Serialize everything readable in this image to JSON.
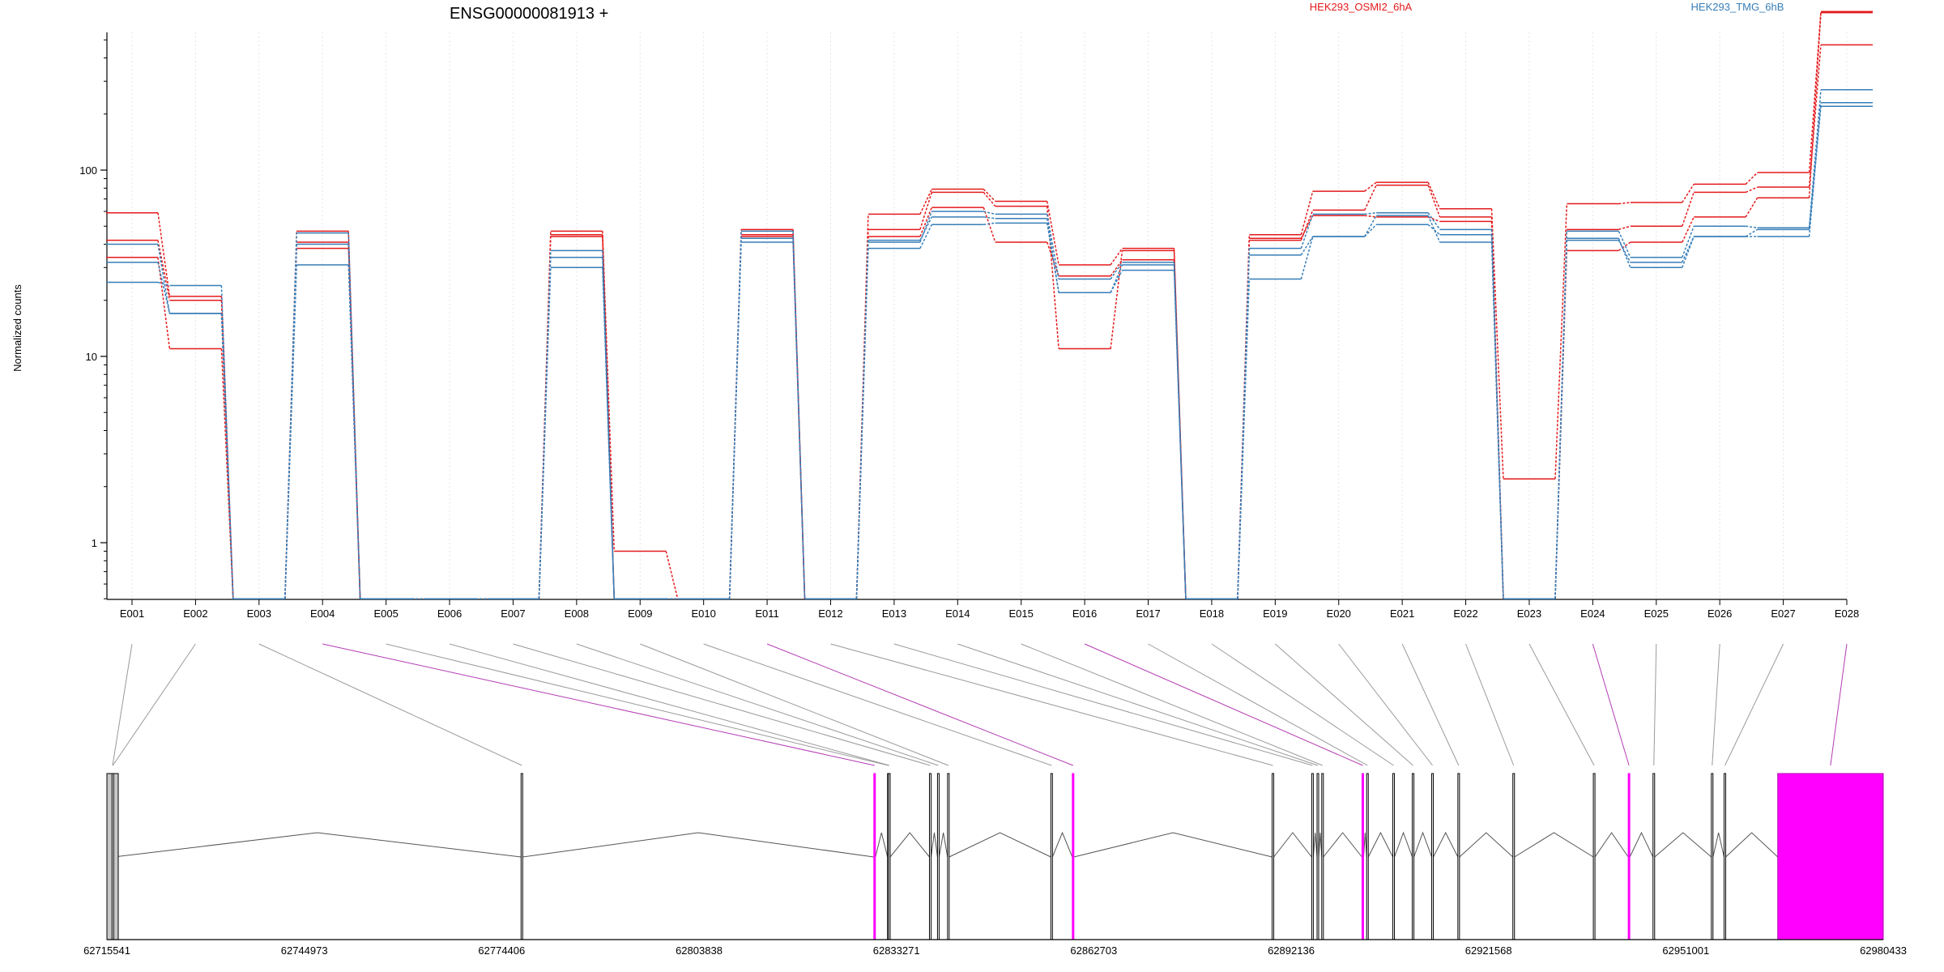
{
  "chart_data": {
    "type": "line",
    "title": "ENSG00000081913 +",
    "ylabel": "Normalized counts",
    "yscale": "log",
    "yticks": [
      "1",
      "10",
      "100"
    ],
    "categories": [
      "E001",
      "E002",
      "E003",
      "E004",
      "E005",
      "E006",
      "E007",
      "E008",
      "E009",
      "E010",
      "E011",
      "E012",
      "E013",
      "E014",
      "E015",
      "E016",
      "E017",
      "E018",
      "E019",
      "E020",
      "E021",
      "E022",
      "E023",
      "E024",
      "E025",
      "E026",
      "E027",
      "E028"
    ],
    "legend": [
      {
        "name": "HEK293_OSMI2_6hA",
        "color": "#e41a1c"
      },
      {
        "name": "HEK293_TMG_6hB",
        "color": "#377eb8"
      }
    ],
    "series": [
      {
        "group": "HEK293_OSMI2_6hA",
        "color": "#e41a1c",
        "values": [
          59,
          21,
          0.5,
          47,
          0.5,
          0.5,
          0.5,
          47,
          0.9,
          0.5,
          48,
          0.5,
          58,
          79,
          68,
          31,
          38,
          0.5,
          45,
          77,
          86,
          62,
          2.2,
          66,
          67,
          84,
          97,
          710
        ]
      },
      {
        "group": "HEK293_OSMI2_6hA",
        "color": "#e41a1c",
        "values": [
          34,
          11,
          0.5,
          38,
          0.5,
          0.5,
          0.5,
          45,
          0.5,
          0.5,
          45,
          0.5,
          48,
          76,
          64,
          11,
          37,
          0.5,
          42,
          61,
          83,
          56,
          0.5,
          48,
          50,
          76,
          81,
          470
        ]
      },
      {
        "group": "HEK293_OSMI2_6hA",
        "color": "#e41a1c",
        "values": [
          42,
          20,
          0.5,
          41,
          0.5,
          0.5,
          0.5,
          44,
          0.5,
          0.5,
          44,
          0.5,
          44,
          63,
          41,
          27,
          33,
          0.5,
          43,
          57,
          56,
          53,
          0.5,
          37,
          41,
          56,
          71,
          700
        ]
      },
      {
        "group": "HEK293_TMG_6hB",
        "color": "#377eb8",
        "values": [
          25,
          24,
          0.5,
          46,
          0.5,
          0.5,
          0.5,
          37,
          0.5,
          0.5,
          47,
          0.5,
          41,
          60,
          58,
          26,
          32,
          0.5,
          38,
          58,
          59,
          48,
          0.5,
          47,
          34,
          50,
          49,
          270
        ]
      },
      {
        "group": "HEK293_TMG_6hB",
        "color": "#377eb8",
        "values": [
          32,
          17,
          0.5,
          31,
          0.5,
          0.5,
          0.5,
          30,
          0.5,
          0.5,
          41,
          0.5,
          38,
          51,
          52,
          22,
          29,
          0.5,
          26,
          44,
          51,
          45,
          0.5,
          43,
          30,
          44,
          44,
          230
        ]
      },
      {
        "group": "HEK293_TMG_6hB",
        "color": "#377eb8",
        "values": [
          40,
          17,
          0.5,
          40,
          0.5,
          0.5,
          0.5,
          34,
          0.5,
          0.5,
          43,
          0.5,
          42,
          56,
          55,
          22,
          31,
          0.5,
          35,
          44,
          57,
          41,
          0.5,
          42,
          32,
          44,
          48,
          220
        ]
      }
    ],
    "genome_ticks": [
      "62715541",
      "62744973",
      "62774406",
      "62803838",
      "62833271",
      "62862703",
      "62892136",
      "62921568",
      "62951001",
      "62980433"
    ],
    "gene_model": {
      "exon_starts": [
        62715541,
        62716300,
        62777300,
        62829900,
        62831950,
        62832100,
        62838200,
        62839400,
        62840900,
        62856300,
        62859500,
        62889300,
        62895200,
        62896000,
        62896700,
        62902700,
        62903400,
        62907300,
        62910200,
        62913100,
        62917000,
        62925200,
        62937200,
        62942400,
        62946100,
        62954800,
        62956700,
        62964700
      ],
      "highlight_exons": [
        "E004",
        "E011",
        "E016",
        "E024",
        "E028"
      ],
      "highlight_color": "#ff00ff"
    }
  }
}
